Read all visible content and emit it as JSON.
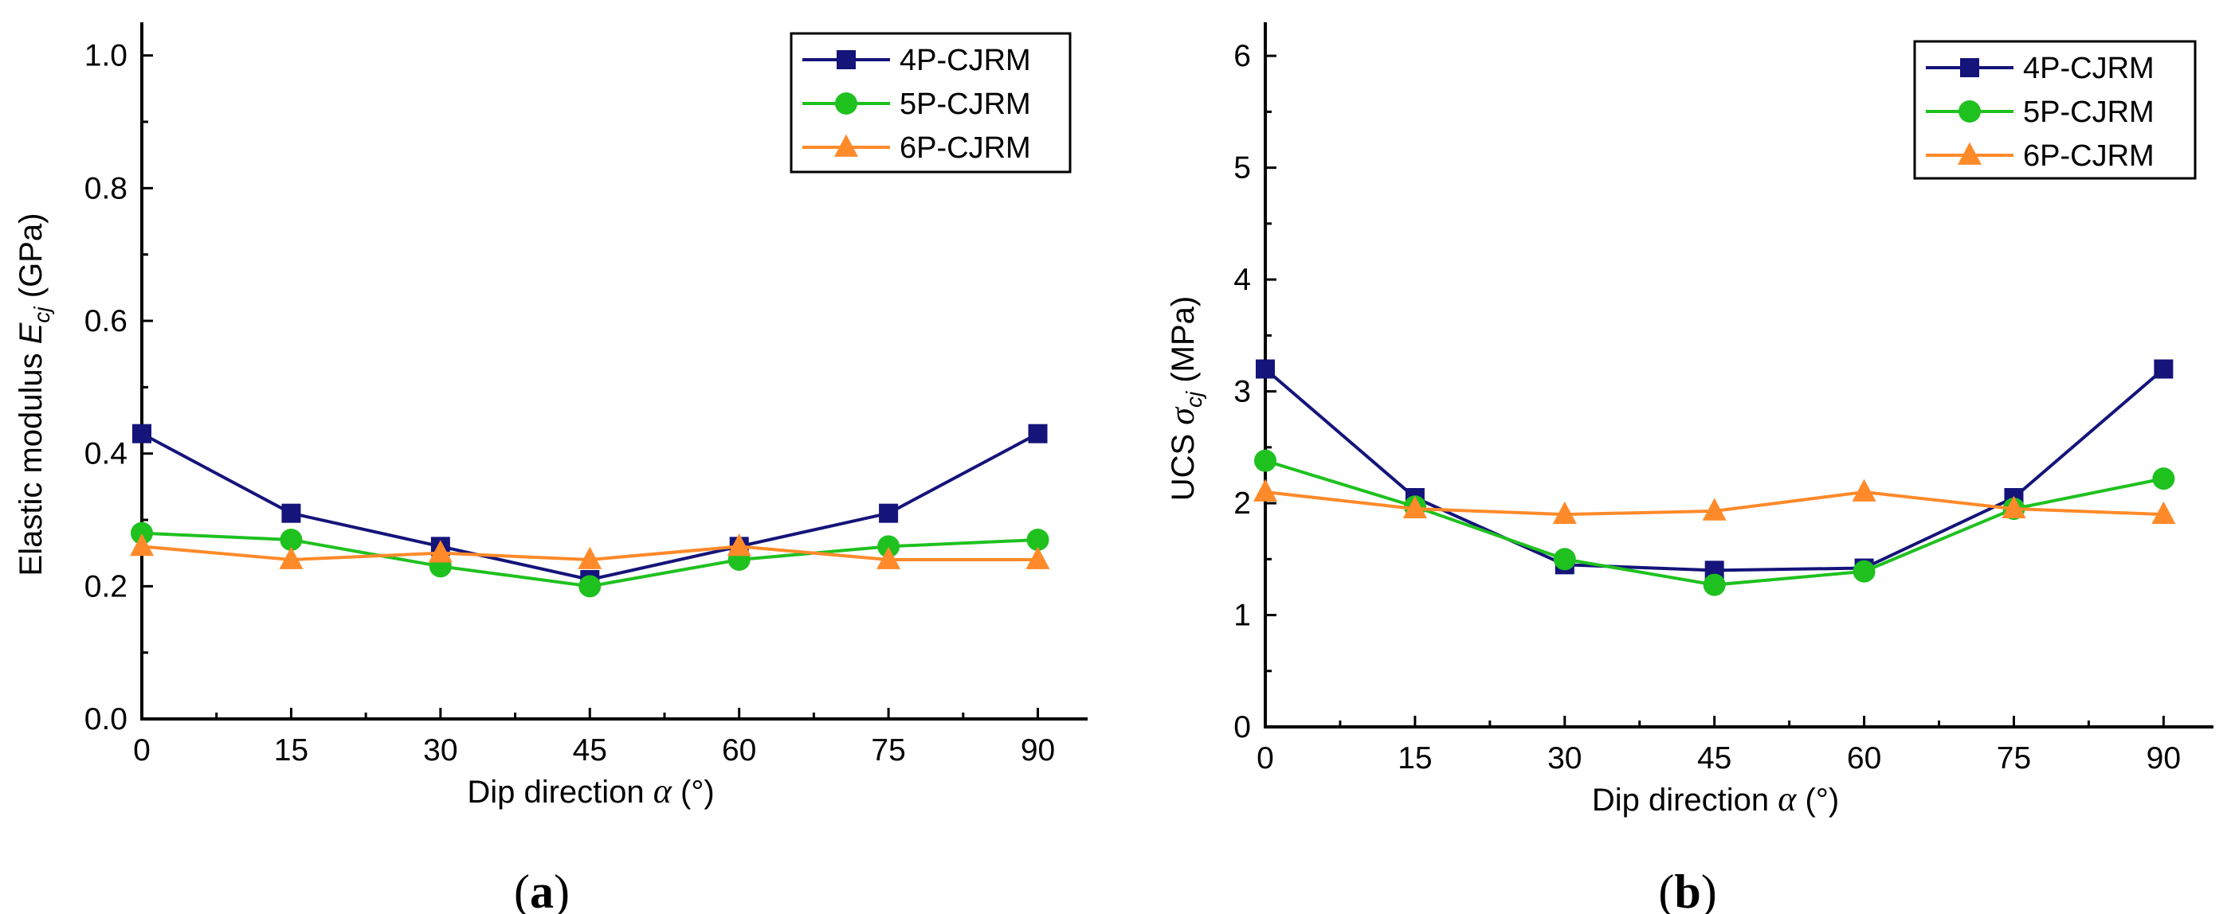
{
  "figure": {
    "caption_a": "(a)",
    "caption_b": "(b)"
  },
  "colors": {
    "4P-CJRM": "#14147a",
    "5P-CJRM": "#1fc11f",
    "6P-CJRM": "#ff8a2a"
  },
  "chart_data": [
    {
      "type": "line",
      "panel": "a",
      "x": [
        0,
        15,
        30,
        45,
        60,
        75,
        90
      ],
      "x_ticks": [
        0,
        15,
        30,
        45,
        60,
        75,
        90
      ],
      "xlim": [
        0,
        95
      ],
      "ylim": [
        0,
        1.05
      ],
      "y_ticks": [
        0.0,
        0.2,
        0.4,
        0.6,
        0.8,
        1.0
      ],
      "y_tick_labels": [
        "0.0",
        "0.2",
        "0.4",
        "0.6",
        "0.8",
        "1.0"
      ],
      "xlabel_main": "Dip direction ",
      "xlabel_symbol": "α",
      "xlabel_unit": " (°)",
      "ylabel_main": "Elastic modulus ",
      "ylabel_symbol": "E",
      "ylabel_sub": "cj",
      "ylabel_unit": " (GPa)",
      "legend_position": "top-right",
      "series": [
        {
          "name": "4P-CJRM",
          "marker": "square",
          "values": [
            0.43,
            0.31,
            0.26,
            0.21,
            0.26,
            0.31,
            0.43
          ]
        },
        {
          "name": "5P-CJRM",
          "marker": "circle",
          "values": [
            0.28,
            0.27,
            0.23,
            0.2,
            0.24,
            0.26,
            0.27
          ]
        },
        {
          "name": "6P-CJRM",
          "marker": "triangle",
          "values": [
            0.26,
            0.24,
            0.25,
            0.24,
            0.26,
            0.24,
            0.24
          ]
        }
      ]
    },
    {
      "type": "line",
      "panel": "b",
      "x": [
        0,
        15,
        30,
        45,
        60,
        75,
        90
      ],
      "x_ticks": [
        0,
        15,
        30,
        45,
        60,
        75,
        90
      ],
      "xlim": [
        0,
        95
      ],
      "ylim": [
        0,
        6.3
      ],
      "y_ticks": [
        0,
        1,
        2,
        3,
        4,
        5,
        6
      ],
      "y_tick_labels": [
        "0",
        "1",
        "2",
        "3",
        "4",
        "5",
        "6"
      ],
      "xlabel_main": "Dip direction ",
      "xlabel_symbol": "α",
      "xlabel_unit": " (°)",
      "ylabel_main": "UCS ",
      "ylabel_symbol": "σ",
      "ylabel_sub": "cj",
      "ylabel_unit": " (MPa)",
      "legend_position": "top-right",
      "series": [
        {
          "name": "4P-CJRM",
          "marker": "square",
          "values": [
            3.2,
            2.05,
            1.45,
            1.4,
            1.42,
            2.05,
            3.2
          ]
        },
        {
          "name": "5P-CJRM",
          "marker": "circle",
          "values": [
            2.38,
            1.97,
            1.5,
            1.27,
            1.39,
            1.95,
            2.22
          ]
        },
        {
          "name": "6P-CJRM",
          "marker": "triangle",
          "values": [
            2.1,
            1.95,
            1.9,
            1.93,
            2.1,
            1.95,
            1.9
          ]
        }
      ]
    }
  ]
}
